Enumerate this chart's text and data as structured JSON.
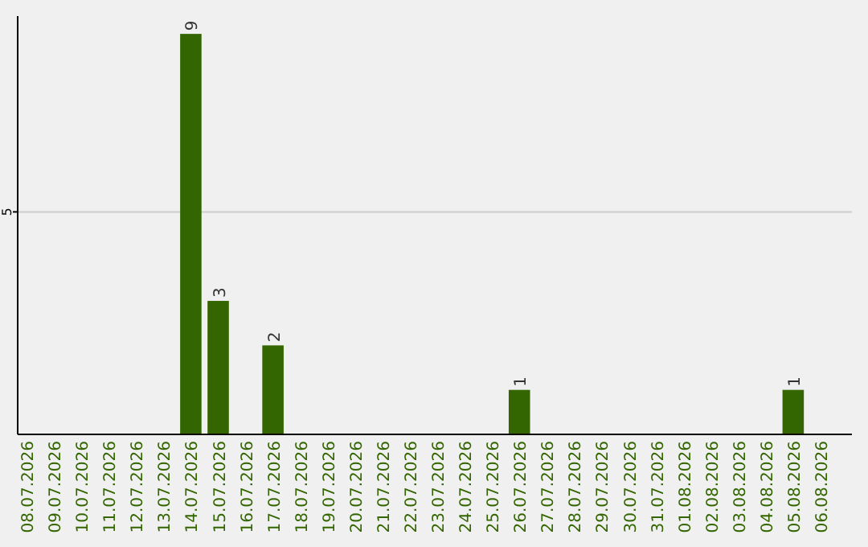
{
  "chart_data": {
    "type": "bar",
    "categories": [
      "08.07.2026",
      "09.07.2026",
      "10.07.2026",
      "11.07.2026",
      "12.07.2026",
      "13.07.2026",
      "14.07.2026",
      "15.07.2026",
      "16.07.2026",
      "17.07.2026",
      "18.07.2026",
      "19.07.2026",
      "20.07.2026",
      "21.07.2026",
      "22.07.2026",
      "23.07.2026",
      "24.07.2026",
      "25.07.2026",
      "26.07.2026",
      "27.07.2026",
      "28.07.2026",
      "29.07.2026",
      "30.07.2026",
      "31.07.2026",
      "01.08.2026",
      "02.08.2026",
      "03.08.2026",
      "04.08.2026",
      "05.08.2026",
      "06.08.2026"
    ],
    "values": [
      0,
      0,
      0,
      0,
      0,
      0,
      9,
      3,
      0,
      2,
      0,
      0,
      0,
      0,
      0,
      0,
      0,
      0,
      1,
      0,
      0,
      0,
      0,
      0,
      0,
      0,
      0,
      0,
      1,
      0
    ],
    "value_labels": [
      null,
      null,
      null,
      null,
      null,
      null,
      "9",
      "3",
      null,
      "2",
      null,
      null,
      null,
      null,
      null,
      null,
      null,
      null,
      "1",
      null,
      null,
      null,
      null,
      null,
      null,
      null,
      null,
      null,
      "1",
      null
    ],
    "color": "#336600",
    "ylim": [
      0,
      9.4
    ],
    "yticks": [
      5
    ],
    "grid": "y"
  }
}
